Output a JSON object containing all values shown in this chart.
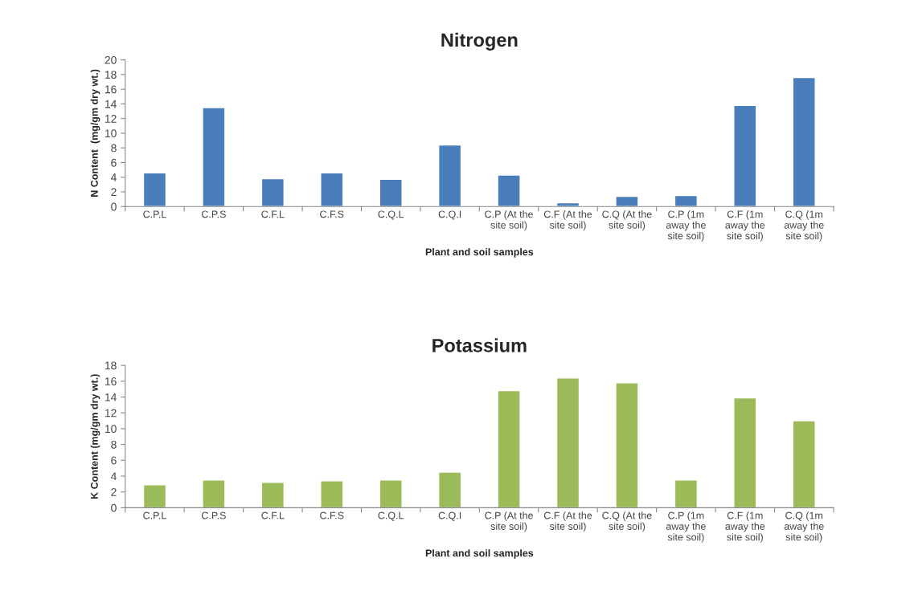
{
  "chart_data": [
    {
      "type": "bar",
      "title": "Nitrogen",
      "xlabel": "Plant and soil samples",
      "ylabel": "N Content  (mg/gm dry wt.)",
      "categories": [
        "C.P.L",
        "C.P.S",
        "C.F.L",
        "C.F.S",
        "C.Q.L",
        "C.Q.I",
        "C.P (At the site soil)",
        "C.F (At the site soil)",
        "C.Q (At the site soil)",
        "C.P (1m away the site soil)",
        "C.F (1m away the site soil)",
        "C.Q (1m away the site soil)"
      ],
      "series": [
        {
          "color": "#4a7ebb",
          "values": [
            4.6,
            13.5,
            3.8,
            4.6,
            3.7,
            8.4,
            4.3,
            0.5,
            1.4,
            1.5,
            13.8,
            17.6
          ]
        }
      ],
      "ylim": [
        0,
        20
      ],
      "yticks": [
        0,
        2,
        4,
        6,
        8,
        10,
        12,
        14,
        16,
        18,
        20
      ],
      "grid": false,
      "legend": false
    },
    {
      "type": "bar",
      "title": "Potassium",
      "xlabel": "Plant and soil samples",
      "ylabel": "K Content (mg/gm dry wt.)",
      "categories": [
        "C.P.L",
        "C.P.S",
        "C.F.L",
        "C.F.S",
        "C.Q.L",
        "C.Q.I",
        "C.P (At the site soil)",
        "C.F (At the site soil)",
        "C.Q (At the site soil)",
        "C.P (1m away the site soil)",
        "C.F (1m away the site soil)",
        "C.Q (1m away the site soil)"
      ],
      "series": [
        {
          "color": "#9bbb59",
          "values": [
            2.9,
            3.5,
            3.2,
            3.4,
            3.5,
            4.5,
            14.8,
            16.4,
            15.8,
            3.5,
            13.9,
            11.0
          ]
        }
      ],
      "ylim": [
        0,
        18
      ],
      "yticks": [
        0,
        2,
        4,
        6,
        8,
        10,
        12,
        14,
        16,
        18
      ],
      "grid": false,
      "legend": false
    }
  ]
}
